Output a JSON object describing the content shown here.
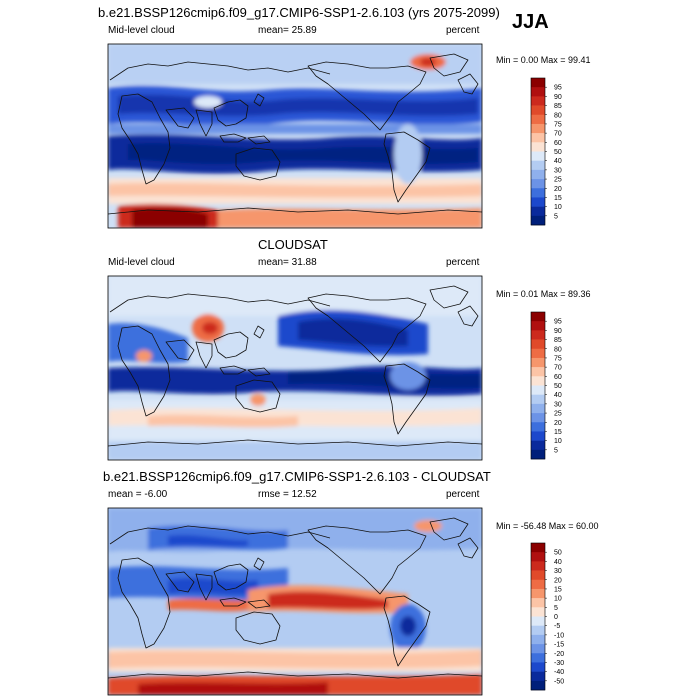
{
  "season": "JJA",
  "panels": [
    {
      "id": "model",
      "title": "b.e21.BSSP126cmip6.f09_g17.CMIP6-SSP1-2.6.103 (yrs 2075-2099)",
      "left_label": "Mid-level cloud",
      "center_label": "mean=  25.89",
      "right_label": "percent",
      "stats": "Min =   0.00 Max =  99.41",
      "colorbar_levels": [
        "95",
        "90",
        "85",
        "80",
        "75",
        "70",
        "60",
        "50",
        "40",
        "30",
        "25",
        "20",
        "15",
        "10",
        "5"
      ]
    },
    {
      "id": "obs",
      "title": "CLOUDSAT",
      "left_label": "Mid-level cloud",
      "center_label": "mean=  31.88",
      "right_label": "percent",
      "stats": "Min =   0.01 Max =  89.36",
      "colorbar_levels": [
        "95",
        "90",
        "85",
        "80",
        "75",
        "70",
        "60",
        "50",
        "40",
        "30",
        "25",
        "20",
        "15",
        "10",
        "5"
      ]
    },
    {
      "id": "diff",
      "title": "b.e21.BSSP126cmip6.f09_g17.CMIP6-SSP1-2.6.103 - CLOUDSAT",
      "left_label": "mean =  -6.00",
      "center_label": "rmse =  12.52",
      "right_label": "percent",
      "stats": "Min = -56.48 Max =  60.00",
      "colorbar_levels": [
        "50",
        "40",
        "30",
        "20",
        "15",
        "10",
        "5",
        "0",
        "-5",
        "-10",
        "-15",
        "-20",
        "-30",
        "-40",
        "-50"
      ]
    }
  ],
  "colors": {
    "full_scale": [
      "#8b0000",
      "#b01010",
      "#cc2a1e",
      "#e04a2a",
      "#ee6c44",
      "#f6966c",
      "#fcc4a6",
      "#fbe3d4",
      "#dde9f8",
      "#b3ccf2",
      "#8fb0ec",
      "#6c93e6",
      "#3d6fdd",
      "#1c48cc",
      "#0a2a9c",
      "#001f7a"
    ],
    "diff_scale": [
      "#8b0000",
      "#b01010",
      "#cc2a1e",
      "#e04a2a",
      "#ee6c44",
      "#f6966c",
      "#fcc4a6",
      "#fbe3d4",
      "#dde9f8",
      "#b3ccf2",
      "#8fb0ec",
      "#6c93e6",
      "#3d6fdd",
      "#1c48cc",
      "#0a2a9c",
      "#001f7a"
    ]
  }
}
